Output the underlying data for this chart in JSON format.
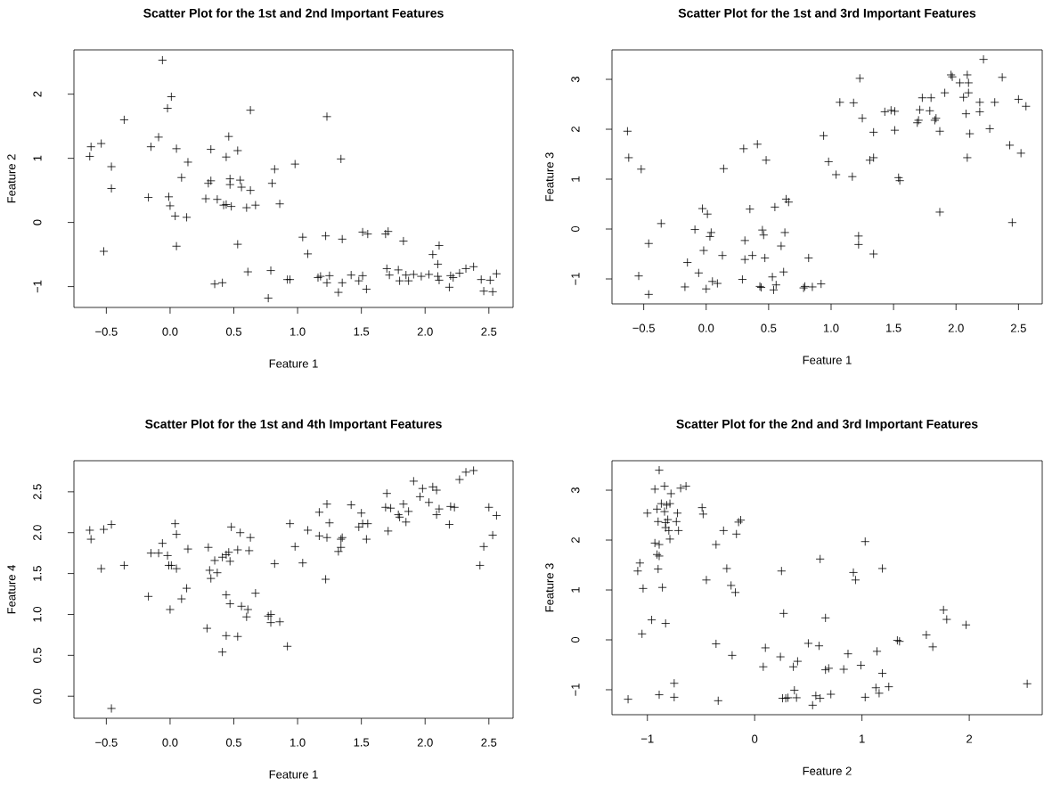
{
  "chart_data": [
    {
      "type": "scatter",
      "title": "Scatter Plot for the 1st and 2nd Important Features",
      "xlabel": "Feature 1",
      "ylabel": "Feature 2",
      "marker": "cross",
      "color": "#000000",
      "xlim": [
        -0.754,
        2.69
      ],
      "ylim": [
        -1.325,
        2.69
      ],
      "xticks": [
        {
          "value": -0.5,
          "label": "−0.5"
        },
        {
          "value": 0,
          "label": "0.0"
        },
        {
          "value": 0.5,
          "label": "0.5"
        },
        {
          "value": 1,
          "label": "1.0"
        },
        {
          "value": 1.5,
          "label": "1.5"
        },
        {
          "value": 2,
          "label": "2.0"
        },
        {
          "value": 2.5,
          "label": "2.5"
        }
      ],
      "yticks": [
        {
          "value": -1,
          "label": "−1"
        },
        0,
        1,
        2
      ],
      "x": [
        -0.06,
        0.01,
        -0.02,
        -0.36,
        0.63,
        1.23,
        -0.62,
        -0.54,
        -0.63,
        -0.09,
        -0.15,
        0.05,
        0.46,
        0.32,
        0.44,
        0.53,
        1.34,
        0.98,
        0.82,
        -0.46,
        -0.46,
        0.14,
        0.09,
        0.32,
        0.3,
        0.47,
        0.47,
        0.55,
        0.56,
        0.63,
        0.8,
        -0.17,
        -0.01,
        0.0,
        0.04,
        0.13,
        0.28,
        0.37,
        0.42,
        0.44,
        0.48,
        0.6,
        0.67,
        0.86,
        -0.52,
        0.05,
        0.53,
        1.04,
        1.08,
        1.22,
        1.35,
        1.51,
        1.55,
        1.69,
        1.71,
        1.83,
        2.06,
        2.11,
        2.1,
        0.61,
        0.79,
        0.35,
        0.41,
        0.77,
        0.92,
        0.94,
        1.16,
        1.18,
        1.25,
        1.23,
        1.35,
        1.32,
        1.42,
        1.48,
        1.51,
        1.54,
        1.7,
        1.72,
        1.79,
        1.8,
        1.85,
        1.87,
        1.91,
        1.97,
        2.03,
        2.1,
        2.11,
        2.19,
        2.2,
        2.22,
        2.27,
        2.32,
        2.38,
        2.44,
        2.51,
        2.46,
        2.53,
        2.56
      ],
      "values": [
        2.53,
        1.96,
        1.78,
        1.6,
        1.75,
        1.65,
        1.18,
        1.23,
        1.03,
        1.33,
        1.18,
        1.15,
        1.34,
        1.14,
        1.02,
        1.12,
        0.99,
        0.91,
        0.83,
        0.87,
        0.53,
        0.94,
        0.7,
        0.65,
        0.61,
        0.68,
        0.59,
        0.66,
        0.55,
        0.5,
        0.61,
        0.39,
        0.4,
        0.26,
        0.1,
        0.08,
        0.37,
        0.36,
        0.27,
        0.28,
        0.25,
        0.23,
        0.27,
        0.29,
        -0.45,
        -0.37,
        -0.34,
        -0.23,
        -0.49,
        -0.21,
        -0.26,
        -0.15,
        -0.18,
        -0.18,
        -0.14,
        -0.29,
        -0.5,
        -0.36,
        -0.65,
        -0.77,
        -0.75,
        -0.96,
        -0.94,
        -1.18,
        -0.89,
        -0.89,
        -0.86,
        -0.84,
        -0.83,
        -0.94,
        -0.94,
        -1.09,
        -0.82,
        -0.91,
        -0.83,
        -1.04,
        -0.72,
        -0.82,
        -0.74,
        -0.91,
        -0.82,
        -0.91,
        -0.81,
        -0.84,
        -0.81,
        -0.84,
        -0.9,
        -1.01,
        -0.83,
        -0.86,
        -0.79,
        -0.72,
        -0.69,
        -0.89,
        -0.9,
        -1.07,
        -1.08,
        -0.8
      ]
    },
    {
      "type": "scatter",
      "title": "Scatter Plot for the 1st and 3rd Important Features",
      "xlabel": "Feature 1",
      "ylabel": "Feature 3",
      "marker": "cross",
      "color": "#000000",
      "xlim": [
        -0.754,
        2.69
      ],
      "ylim": [
        -1.5,
        3.59
      ],
      "xticks": [
        {
          "value": -0.5,
          "label": "−0.5"
        },
        {
          "value": 0,
          "label": "0.0"
        },
        {
          "value": 0.5,
          "label": "0.5"
        },
        {
          "value": 1,
          "label": "1.0"
        },
        {
          "value": 1.5,
          "label": "1.5"
        },
        {
          "value": 2,
          "label": "2.0"
        },
        {
          "value": 2.5,
          "label": "2.5"
        }
      ],
      "yticks": [
        {
          "value": -1,
          "label": "−1"
        },
        0,
        1,
        2,
        3
      ],
      "x": [
        -0.63,
        -0.62,
        -0.52,
        -0.36,
        -0.46,
        -0.54,
        -0.46,
        -0.17,
        -0.15,
        -0.06,
        -0.09,
        -0.03,
        0.01,
        -0.02,
        0.0,
        0.04,
        0.03,
        0.05,
        0.09,
        0.13,
        0.14,
        0.3,
        0.41,
        0.48,
        0.35,
        0.31,
        0.31,
        0.37,
        0.29,
        0.43,
        0.44,
        0.45,
        0.46,
        0.47,
        0.53,
        0.54,
        0.56,
        0.55,
        0.64,
        0.66,
        0.63,
        0.6,
        0.62,
        0.78,
        0.79,
        0.85,
        0.92,
        0.82,
        0.94,
        0.98,
        1.04,
        1.17,
        1.07,
        1.18,
        1.23,
        1.25,
        1.22,
        1.22,
        1.34,
        1.31,
        1.34,
        1.34,
        1.43,
        1.48,
        1.51,
        1.51,
        1.54,
        1.55,
        1.69,
        1.7,
        1.71,
        1.73,
        1.8,
        1.79,
        1.83,
        1.84,
        1.87,
        1.87,
        1.91,
        1.96,
        1.97,
        2.03,
        2.06,
        2.08,
        2.09,
        2.1,
        2.1,
        2.11,
        2.09,
        2.22,
        2.19,
        2.19,
        2.27,
        2.31,
        2.37,
        2.43,
        2.45,
        2.5,
        2.52,
        2.56
      ],
      "values": [
        1.96,
        1.43,
        1.2,
        0.11,
        -0.29,
        -0.94,
        -1.31,
        -1.16,
        -0.67,
        -0.88,
        -0.01,
        0.41,
        0.3,
        -0.43,
        -1.2,
        -0.07,
        -0.15,
        -1.05,
        -1.09,
        -0.53,
        1.21,
        1.61,
        1.7,
        1.38,
        0.4,
        -0.23,
        -0.61,
        -0.53,
        -1.01,
        -1.15,
        -1.17,
        -0.02,
        -0.12,
        -0.58,
        -0.96,
        -1.22,
        -1.12,
        0.44,
        0.6,
        0.54,
        -0.07,
        -0.34,
        -0.86,
        -1.18,
        -1.15,
        -1.16,
        -1.1,
        -0.58,
        1.87,
        1.35,
        1.09,
        1.05,
        2.54,
        2.53,
        3.02,
        2.22,
        -0.14,
        -0.31,
        -0.5,
        1.38,
        1.43,
        1.94,
        2.35,
        2.38,
        2.36,
        1.98,
        1.03,
        0.97,
        2.13,
        2.18,
        2.39,
        2.63,
        2.63,
        2.37,
        2.18,
        2.22,
        1.96,
        0.34,
        2.73,
        3.09,
        3.05,
        2.93,
        2.64,
        2.31,
        3.09,
        2.93,
        2.73,
        1.91,
        1.43,
        3.4,
        2.54,
        2.35,
        2.01,
        2.54,
        3.04,
        1.68,
        0.13,
        2.6,
        1.52,
        2.46
      ]
    },
    {
      "type": "scatter",
      "title": "Scatter Plot for the 1st and 4th Important Features",
      "xlabel": "Feature 1",
      "ylabel": "Feature 4",
      "marker": "cross",
      "color": "#000000",
      "xlim": [
        -0.754,
        2.69
      ],
      "ylim": [
        -0.27,
        2.88
      ],
      "xticks": [
        {
          "value": -0.5,
          "label": "−0.5"
        },
        {
          "value": 0,
          "label": "0.0"
        },
        {
          "value": 0.5,
          "label": "0.5"
        },
        {
          "value": 1,
          "label": "1.0"
        },
        {
          "value": 1.5,
          "label": "1.5"
        },
        {
          "value": 2,
          "label": "2.0"
        },
        {
          "value": 2.5,
          "label": "2.5"
        }
      ],
      "yticks": [
        {
          "value": 0,
          "label": "0.0"
        },
        0.5,
        {
          "value": 1,
          "label": "1.0"
        },
        1.5,
        {
          "value": 2,
          "label": "2.0"
        },
        2.5
      ],
      "x": [
        -0.63,
        -0.62,
        -0.52,
        -0.46,
        -0.54,
        -0.36,
        -0.46,
        -0.17,
        -0.15,
        -0.09,
        -0.06,
        -0.02,
        -0.01,
        0.01,
        0.0,
        0.04,
        0.05,
        0.05,
        0.09,
        0.13,
        0.14,
        0.3,
        0.29,
        0.31,
        0.32,
        0.35,
        0.37,
        0.41,
        0.44,
        0.46,
        0.47,
        0.44,
        0.47,
        0.44,
        0.41,
        0.48,
        0.55,
        0.53,
        0.62,
        0.63,
        0.53,
        0.56,
        0.61,
        0.6,
        0.67,
        0.77,
        0.79,
        0.79,
        0.86,
        0.82,
        0.92,
        0.94,
        0.98,
        1.04,
        1.08,
        1.17,
        1.17,
        1.23,
        1.23,
        1.25,
        1.22,
        1.32,
        1.34,
        1.34,
        1.35,
        1.42,
        1.48,
        1.5,
        1.51,
        1.55,
        1.54,
        1.69,
        1.7,
        1.73,
        1.71,
        1.79,
        1.8,
        1.83,
        1.85,
        1.87,
        1.91,
        1.96,
        1.98,
        2.03,
        2.06,
        2.09,
        2.09,
        2.11,
        2.19,
        2.2,
        2.23,
        2.27,
        2.32,
        2.38,
        2.43,
        2.46,
        2.5,
        2.53,
        2.56
      ],
      "values": [
        2.03,
        1.92,
        2.04,
        2.1,
        1.56,
        1.6,
        -0.15,
        1.22,
        1.75,
        1.75,
        1.87,
        1.72,
        1.6,
        1.6,
        1.06,
        2.11,
        1.98,
        1.56,
        1.19,
        1.32,
        1.8,
        1.82,
        0.83,
        1.54,
        1.44,
        1.66,
        1.51,
        1.7,
        1.73,
        1.76,
        1.65,
        1.24,
        1.13,
        0.74,
        0.54,
        2.07,
        2.0,
        1.79,
        1.78,
        1.94,
        0.73,
        1.1,
        1.06,
        0.97,
        1.26,
        0.98,
        1.0,
        0.9,
        0.91,
        1.62,
        0.61,
        2.11,
        1.83,
        1.63,
        2.03,
        1.96,
        2.25,
        2.35,
        1.94,
        2.12,
        1.43,
        1.77,
        1.82,
        1.92,
        1.94,
        2.34,
        2.07,
        2.24,
        2.11,
        2.11,
        1.92,
        2.31,
        2.48,
        2.3,
        2.02,
        2.22,
        2.19,
        2.35,
        2.13,
        2.26,
        2.63,
        2.44,
        2.54,
        2.37,
        2.56,
        2.52,
        2.22,
        2.29,
        2.1,
        2.32,
        2.31,
        2.65,
        2.74,
        2.76,
        1.6,
        1.83,
        2.31,
        1.97,
        2.21
      ]
    },
    {
      "type": "scatter",
      "title": "Scatter Plot for the 2nd and 3rd Important Features",
      "xlabel": "Feature 2",
      "ylabel": "Feature 3",
      "marker": "cross",
      "color": "#000000",
      "xlim": [
        -1.33,
        2.68
      ],
      "ylim": [
        -1.5,
        3.59
      ],
      "xticks": [
        {
          "value": -1,
          "label": "−1"
        },
        0,
        1,
        2
      ],
      "yticks": [
        {
          "value": -1,
          "label": "−1"
        },
        0,
        1,
        2,
        3
      ],
      "x": [
        -1.18,
        -0.89,
        -0.93,
        -0.84,
        -0.78,
        -0.69,
        -0.64,
        -1.0,
        -0.91,
        -0.87,
        -0.82,
        -0.79,
        -0.84,
        -0.72,
        -0.9,
        -0.83,
        -0.81,
        -0.73,
        -0.83,
        -0.8,
        -0.71,
        -0.79,
        -0.93,
        -0.89,
        -0.91,
        -0.89,
        -1.07,
        -1.09,
        -0.9,
        -1.04,
        -0.86,
        -0.96,
        -0.83,
        -1.05,
        -0.75,
        -0.89,
        -0.75,
        -0.49,
        -0.48,
        -0.29,
        -0.36,
        -0.17,
        -0.15,
        -0.13,
        -0.45,
        -0.26,
        -0.22,
        -0.18,
        -0.36,
        -0.21,
        -0.34,
        0.1,
        0.08,
        0.25,
        0.27,
        0.24,
        0.26,
        0.29,
        0.31,
        0.36,
        0.4,
        0.37,
        0.39,
        0.5,
        0.54,
        0.57,
        0.61,
        0.6,
        0.61,
        0.66,
        0.66,
        0.69,
        0.71,
        0.83,
        0.87,
        0.92,
        0.94,
        0.99,
        1.03,
        1.03,
        1.14,
        1.13,
        1.16,
        1.19,
        1.19,
        1.25,
        1.33,
        1.35,
        1.6,
        1.66,
        1.76,
        1.79,
        1.97,
        2.54
      ],
      "values": [
        -1.19,
        3.4,
        3.02,
        3.08,
        2.93,
        3.04,
        3.08,
        2.54,
        2.62,
        2.73,
        2.7,
        2.73,
        2.57,
        2.54,
        2.37,
        2.35,
        2.41,
        2.37,
        2.25,
        2.19,
        2.19,
        2.02,
        1.94,
        1.91,
        1.71,
        1.68,
        1.54,
        1.38,
        1.42,
        1.03,
        1.05,
        0.4,
        0.33,
        0.12,
        -0.87,
        -1.1,
        -1.15,
        2.65,
        2.52,
        2.19,
        1.91,
        2.12,
        2.36,
        2.4,
        1.2,
        1.43,
        1.09,
        0.95,
        -0.08,
        -0.31,
        -1.22,
        -0.16,
        -0.54,
        1.38,
        0.53,
        -0.34,
        -1.17,
        -1.17,
        -1.16,
        -0.54,
        -0.43,
        -1.01,
        -1.16,
        -0.07,
        -1.31,
        -1.12,
        -1.17,
        -0.12,
        1.62,
        0.44,
        -0.6,
        -0.57,
        -1.09,
        -0.59,
        -0.28,
        1.35,
        1.2,
        -0.51,
        1.97,
        -1.15,
        -0.23,
        -0.96,
        -1.07,
        -0.67,
        1.43,
        -0.94,
        -0.01,
        -0.03,
        0.1,
        -0.14,
        0.6,
        0.41,
        0.3,
        -0.88
      ]
    }
  ]
}
